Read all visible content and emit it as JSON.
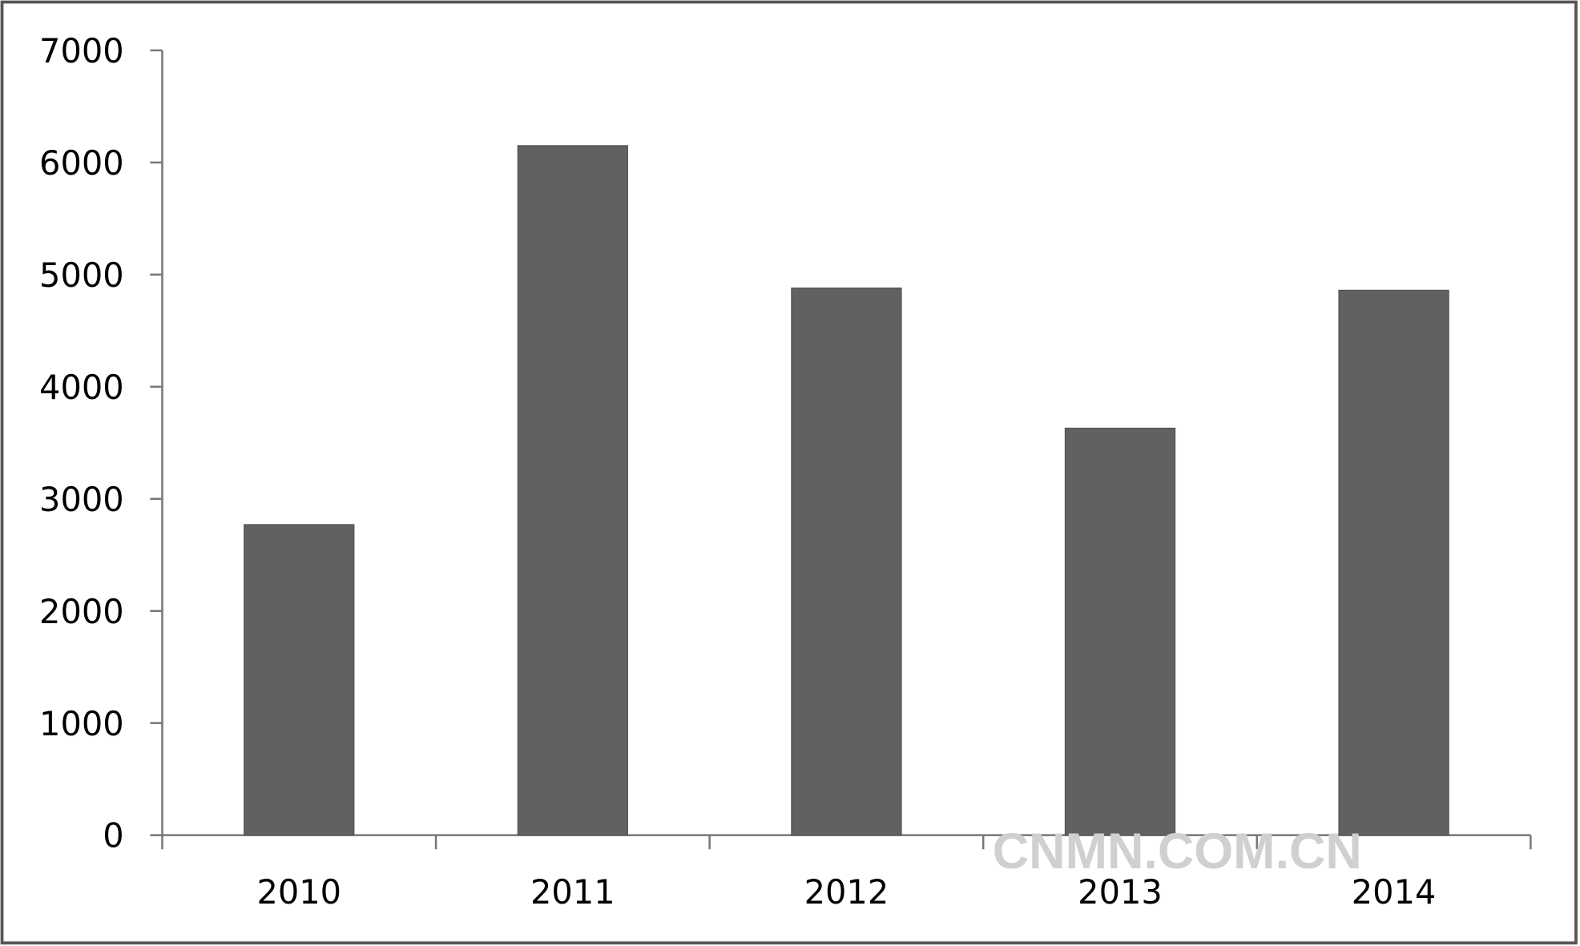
{
  "chart_data": {
    "type": "bar",
    "title": "",
    "xlabel": "",
    "ylabel": "",
    "categories": [
      "2010",
      "2011",
      "2012",
      "2013",
      "2014"
    ],
    "values": [
      2770,
      6150,
      4880,
      3630,
      4860
    ],
    "ylim": [
      0,
      7000
    ],
    "yticks": [
      0,
      1000,
      2000,
      3000,
      4000,
      5000,
      6000,
      7000
    ],
    "grid": false,
    "legend": "none",
    "bar_color": "#616161"
  },
  "watermark": "CNMN.COM.CN"
}
